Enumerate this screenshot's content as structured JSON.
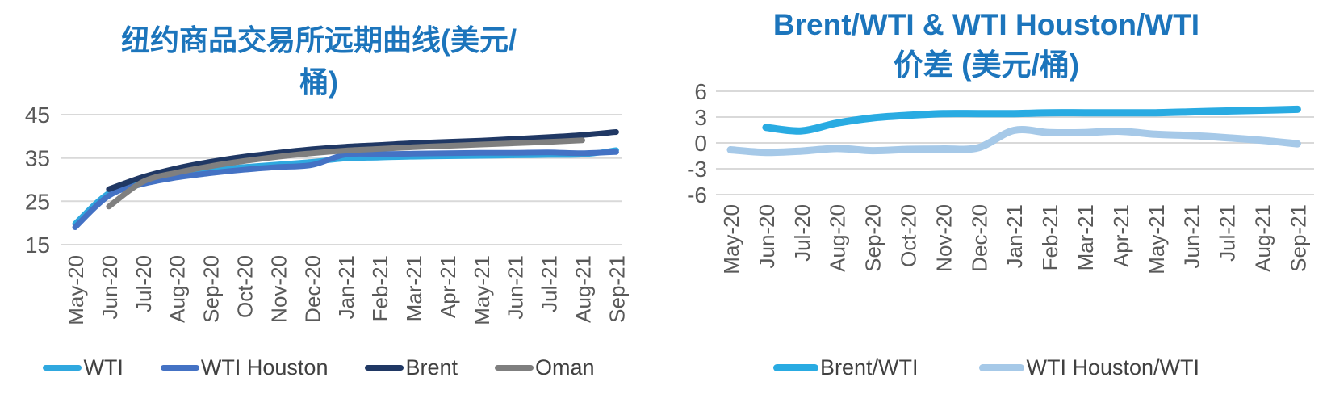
{
  "page": {
    "background": "#FFFFFF"
  },
  "colors": {
    "title": "#1C75BC",
    "axis_text": "#595959",
    "grid": "#D9D9D9",
    "legend_text": "#404040"
  },
  "chart_data": [
    {
      "type": "line",
      "title": "纽约商品交易所远期曲线(美元/桶)",
      "title_lines": [
        "纽约商品交易所远期曲线(美元/",
        "桶)"
      ],
      "xlabel": "",
      "ylabel": "",
      "ylim": [
        15,
        45
      ],
      "yticks": [
        45,
        35,
        25,
        15
      ],
      "grid": true,
      "legend_position": "bottom",
      "categories": [
        "May-20",
        "Jun-20",
        "Jul-20",
        "Aug-20",
        "Sep-20",
        "Oct-20",
        "Nov-20",
        "Dec-20",
        "Jan-21",
        "Feb-21",
        "Mar-21",
        "Apr-21",
        "May-21",
        "Jun-21",
        "Jul-21",
        "Aug-21",
        "Sep-21"
      ],
      "series": [
        {
          "name": "WTI",
          "color": "#2FA8DF",
          "values": [
            19.8,
            26.9,
            29.4,
            31.0,
            32.1,
            32.9,
            33.5,
            34.1,
            34.9,
            35.1,
            35.3,
            35.4,
            35.5,
            35.6,
            35.7,
            35.8,
            36.8
          ]
        },
        {
          "name": "WTI Houston",
          "color": "#4472C4",
          "values": [
            19.0,
            26.3,
            29.0,
            30.5,
            31.5,
            32.3,
            32.9,
            33.4,
            35.8,
            35.9,
            36.0,
            36.1,
            36.2,
            36.2,
            36.3,
            36.1,
            36.4
          ]
        },
        {
          "name": "Brent",
          "color": "#203864",
          "values": [
            null,
            27.8,
            30.6,
            32.6,
            34.1,
            35.3,
            36.2,
            37.0,
            37.6,
            38.0,
            38.4,
            38.7,
            39.0,
            39.4,
            39.8,
            40.3,
            41.0
          ]
        },
        {
          "name": "Oman",
          "color": "#7F7F7F",
          "values": [
            null,
            23.8,
            29.5,
            31.6,
            33.1,
            34.3,
            35.3,
            36.1,
            36.7,
            37.1,
            37.5,
            37.8,
            38.1,
            38.4,
            38.7,
            39.1,
            null
          ]
        }
      ]
    },
    {
      "type": "line",
      "title": "Brent/WTI & WTI Houston/WTI 价差 (美元/桶)",
      "title_lines": [
        "Brent/WTI & WTI Houston/WTI",
        "价差 (美元/桶)"
      ],
      "xlabel": "",
      "ylabel": "",
      "ylim": [
        -6,
        6
      ],
      "yticks": [
        6,
        3,
        0,
        -3,
        -6
      ],
      "grid": true,
      "legend_position": "bottom",
      "categories": [
        "May-20",
        "Jun-20",
        "Jul-20",
        "Aug-20",
        "Sep-20",
        "Oct-20",
        "Nov-20",
        "Dec-20",
        "Jan-21",
        "Feb-21",
        "Mar-21",
        "Apr-21",
        "May-21",
        "Jun-21",
        "Jul-21",
        "Aug-21",
        "Sep-21"
      ],
      "series": [
        {
          "name": "Brent/WTI",
          "color": "#29ABE2",
          "values": [
            null,
            1.8,
            1.4,
            2.3,
            2.9,
            3.2,
            3.4,
            3.4,
            3.4,
            3.5,
            3.5,
            3.5,
            3.5,
            3.6,
            3.7,
            3.8,
            3.9
          ]
        },
        {
          "name": "WTI Houston/WTI",
          "color": "#A6C9E8",
          "values": [
            -0.8,
            -1.1,
            -0.95,
            -0.65,
            -0.9,
            -0.75,
            -0.7,
            -0.55,
            1.45,
            1.2,
            1.2,
            1.35,
            1.0,
            0.85,
            0.6,
            0.3,
            -0.1
          ]
        }
      ]
    }
  ]
}
